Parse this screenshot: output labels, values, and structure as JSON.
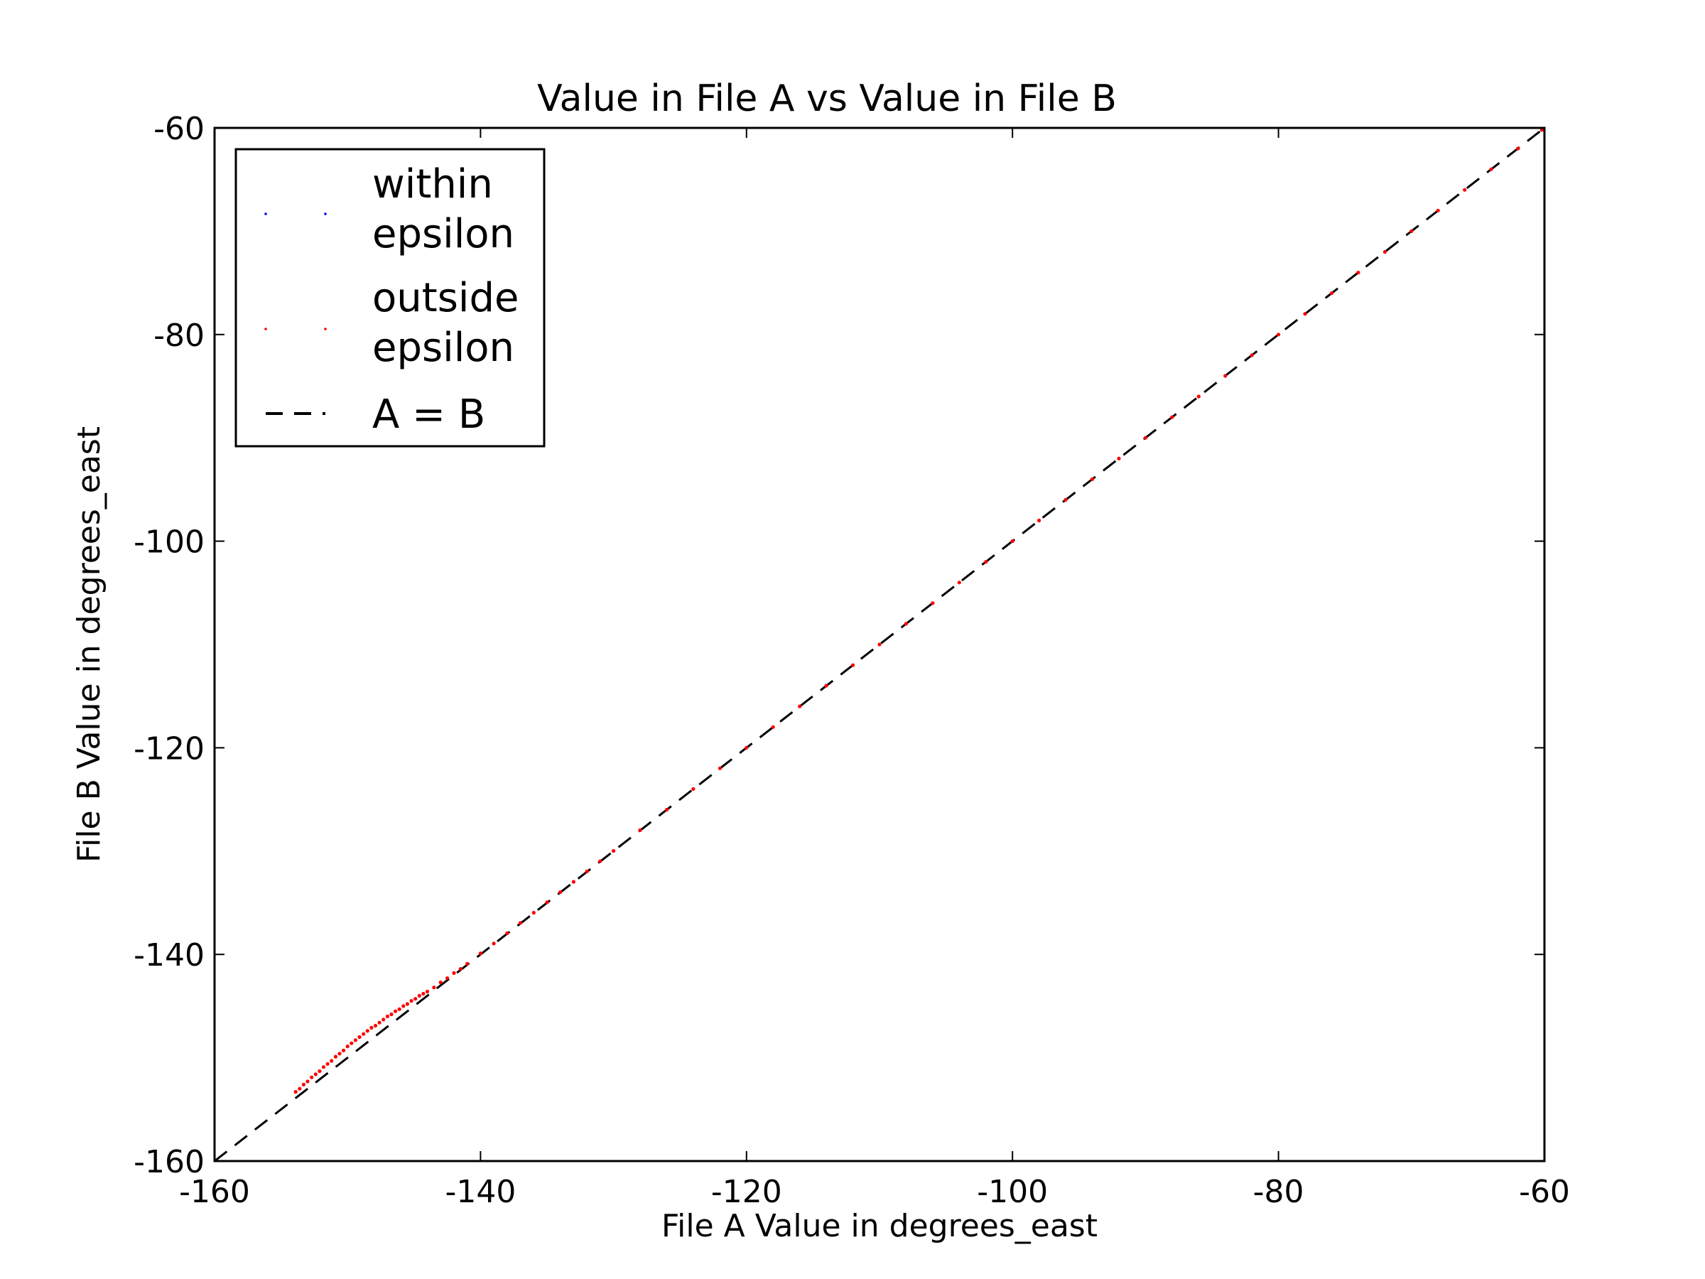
{
  "chart_data": {
    "type": "scatter",
    "title": "Value in File A vs Value in File B",
    "xlabel": "File A Value in degrees_east",
    "ylabel": "File B Value in degrees_east",
    "xlim": [
      -160,
      -60
    ],
    "ylim": [
      -160,
      -60
    ],
    "xticks": [
      -160,
      -140,
      -120,
      -100,
      -80,
      -60
    ],
    "yticks": [
      -160,
      -140,
      -120,
      -100,
      -80,
      -60
    ],
    "xtick_labels": [
      "-160",
      "-140",
      "-120",
      "-100",
      "-80",
      "-60"
    ],
    "ytick_labels": [
      "-160",
      "-140",
      "-120",
      "-100",
      "-80",
      "-60"
    ],
    "grid": false,
    "legend_position": "top-left",
    "series": [
      {
        "name": "within\nepsilon",
        "color": "#0000ff",
        "marker": "point",
        "points": []
      },
      {
        "name": "outside\nepsilon",
        "color": "#ff0000",
        "marker": "point",
        "points": [
          [
            -153.9,
            -153.3
          ],
          [
            -153.6,
            -153.0
          ],
          [
            -153.3,
            -152.6
          ],
          [
            -153.0,
            -152.3
          ],
          [
            -152.7,
            -151.9
          ],
          [
            -152.4,
            -151.6
          ],
          [
            -152.1,
            -151.3
          ],
          [
            -151.8,
            -150.9
          ],
          [
            -151.5,
            -150.6
          ],
          [
            -151.2,
            -150.3
          ],
          [
            -150.9,
            -149.9
          ],
          [
            -150.6,
            -149.6
          ],
          [
            -150.3,
            -149.3
          ],
          [
            -150.0,
            -148.9
          ],
          [
            -149.7,
            -148.6
          ],
          [
            -149.4,
            -148.3
          ],
          [
            -149.1,
            -148.0
          ],
          [
            -148.8,
            -147.7
          ],
          [
            -148.5,
            -147.4
          ],
          [
            -148.2,
            -147.1
          ],
          [
            -147.9,
            -146.9
          ],
          [
            -147.6,
            -146.6
          ],
          [
            -147.3,
            -146.3
          ],
          [
            -147.0,
            -146.0
          ],
          [
            -146.7,
            -145.8
          ],
          [
            -146.4,
            -145.5
          ],
          [
            -146.1,
            -145.3
          ],
          [
            -145.8,
            -145.0
          ],
          [
            -145.5,
            -144.8
          ],
          [
            -145.2,
            -144.5
          ],
          [
            -144.9,
            -144.3
          ],
          [
            -144.6,
            -144.0
          ],
          [
            -144.3,
            -143.8
          ],
          [
            -144.0,
            -143.6
          ],
          [
            -143.5,
            -143.2
          ],
          [
            -143.0,
            -142.7
          ],
          [
            -142.5,
            -142.3
          ],
          [
            -142.0,
            -141.8
          ],
          [
            -141.5,
            -141.4
          ],
          [
            -141.0,
            -140.9
          ],
          [
            -140.0,
            -139.9
          ],
          [
            -139.0,
            -138.95
          ],
          [
            -138.0,
            -137.95
          ],
          [
            -137.0,
            -136.95
          ],
          [
            -136.0,
            -135.96
          ],
          [
            -135.0,
            -134.96
          ],
          [
            -134.0,
            -133.97
          ],
          [
            -133.0,
            -132.97
          ],
          [
            -132.0,
            -131.97
          ],
          [
            -131.0,
            -130.98
          ],
          [
            -130.0,
            -129.98
          ],
          [
            -128.0,
            -127.98
          ],
          [
            -126.0,
            -125.99
          ],
          [
            -124.0,
            -123.99
          ],
          [
            -122.0,
            -121.99
          ],
          [
            -120.0,
            -119.99
          ],
          [
            -118.0,
            -117.99
          ],
          [
            -116.0,
            -115.99
          ],
          [
            -114.0,
            -113.99
          ],
          [
            -112.0,
            -112.0
          ],
          [
            -110.0,
            -110.0
          ],
          [
            -108.0,
            -108.0
          ],
          [
            -106.0,
            -106.0
          ],
          [
            -104.0,
            -104.0
          ],
          [
            -102.0,
            -102.0
          ],
          [
            -100.0,
            -100.0
          ],
          [
            -98.0,
            -98.0
          ],
          [
            -96.0,
            -96.0
          ],
          [
            -94.0,
            -94.0
          ],
          [
            -92.0,
            -92.0
          ],
          [
            -90.0,
            -90.0
          ],
          [
            -88.0,
            -88.0
          ],
          [
            -86.0,
            -86.0
          ],
          [
            -84.0,
            -84.0
          ],
          [
            -82.0,
            -82.0
          ],
          [
            -80.0,
            -80.0
          ],
          [
            -78.0,
            -78.0
          ],
          [
            -76.0,
            -76.0
          ],
          [
            -74.0,
            -74.0
          ],
          [
            -72.0,
            -72.0
          ],
          [
            -70.0,
            -70.0
          ],
          [
            -68.0,
            -68.0
          ],
          [
            -66.0,
            -66.0
          ],
          [
            -64.0,
            -64.0
          ],
          [
            -62.0,
            -62.0
          ],
          [
            -60.2,
            -60.2
          ]
        ]
      },
      {
        "name": "A = B",
        "color": "#000000",
        "line_style": "dashed",
        "x": [
          -160,
          -60
        ],
        "y": [
          -160,
          -60
        ]
      }
    ]
  }
}
